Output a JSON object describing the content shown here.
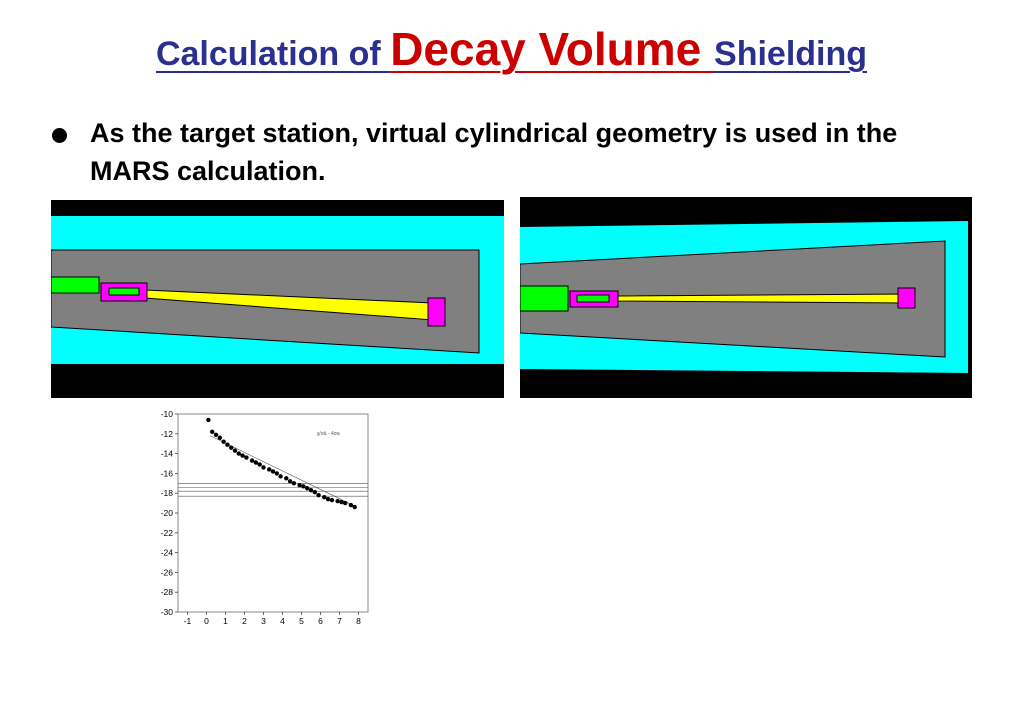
{
  "slide": {
    "title_part1": "Calculation of ",
    "title_part2": "Decay Volume ",
    "title_part3": "Shielding",
    "bullet": "As the target station, virtual cylindrical geometry is used in the MARS calculation.",
    "colors": {
      "title_blue": "#2b2f8e",
      "title_red": "#cc0000"
    }
  },
  "geometry_images": [
    {
      "name": "mars-geometry-left",
      "colors": {
        "background": "#000000",
        "outer": "#00ffff",
        "shield": "#808080",
        "beam": "#ffff00",
        "target": "#00ff00",
        "horn": "#ff00ff"
      }
    },
    {
      "name": "mars-geometry-right",
      "colors": {
        "background": "#000000",
        "outer": "#00ffff",
        "shield": "#808080",
        "beam": "#ffff00",
        "target": "#00ff00",
        "horn": "#ff00ff"
      }
    }
  ],
  "chart_data": {
    "type": "scatter",
    "title": "",
    "legend": "χ/σä - 4σa",
    "xlabel": "",
    "ylabel": "",
    "xlim": [
      -1.5,
      8.5
    ],
    "ylim": [
      -30,
      -10
    ],
    "x_ticks": [
      -1,
      0,
      1,
      2,
      3,
      4,
      5,
      6,
      7,
      8
    ],
    "y_ticks": [
      -10,
      -12,
      -14,
      -16,
      -18,
      -20,
      -22,
      -24,
      -26,
      -28,
      -30
    ],
    "grid": false,
    "points": {
      "x": [
        0.1,
        0.3,
        0.5,
        0.7,
        0.9,
        1.1,
        1.3,
        1.5,
        1.7,
        1.9,
        2.1,
        2.4,
        2.6,
        2.8,
        3.0,
        3.3,
        3.5,
        3.7,
        3.9,
        4.2,
        4.4,
        4.6,
        4.9,
        5.1,
        5.3,
        5.5,
        5.7,
        5.9,
        6.2,
        6.4,
        6.6,
        6.9,
        7.1,
        7.3,
        7.6,
        7.8
      ],
      "y": [
        -10.6,
        -11.8,
        -12.1,
        -12.4,
        -12.8,
        -13.1,
        -13.4,
        -13.7,
        -14.0,
        -14.2,
        -14.4,
        -14.7,
        -14.9,
        -15.1,
        -15.4,
        -15.6,
        -15.8,
        -16.0,
        -16.3,
        -16.5,
        -16.8,
        -17.0,
        -17.2,
        -17.3,
        -17.5,
        -17.7,
        -17.9,
        -18.2,
        -18.4,
        -18.6,
        -18.7,
        -18.8,
        -18.9,
        -19.0,
        -19.2,
        -19.4
      ]
    },
    "fit_line": {
      "x": [
        0.2,
        7.8
      ],
      "y": [
        -12.2,
        -19.3
      ]
    },
    "horizontal_lines_y": [
      -17.0,
      -17.4,
      -17.8,
      -18.3
    ]
  }
}
